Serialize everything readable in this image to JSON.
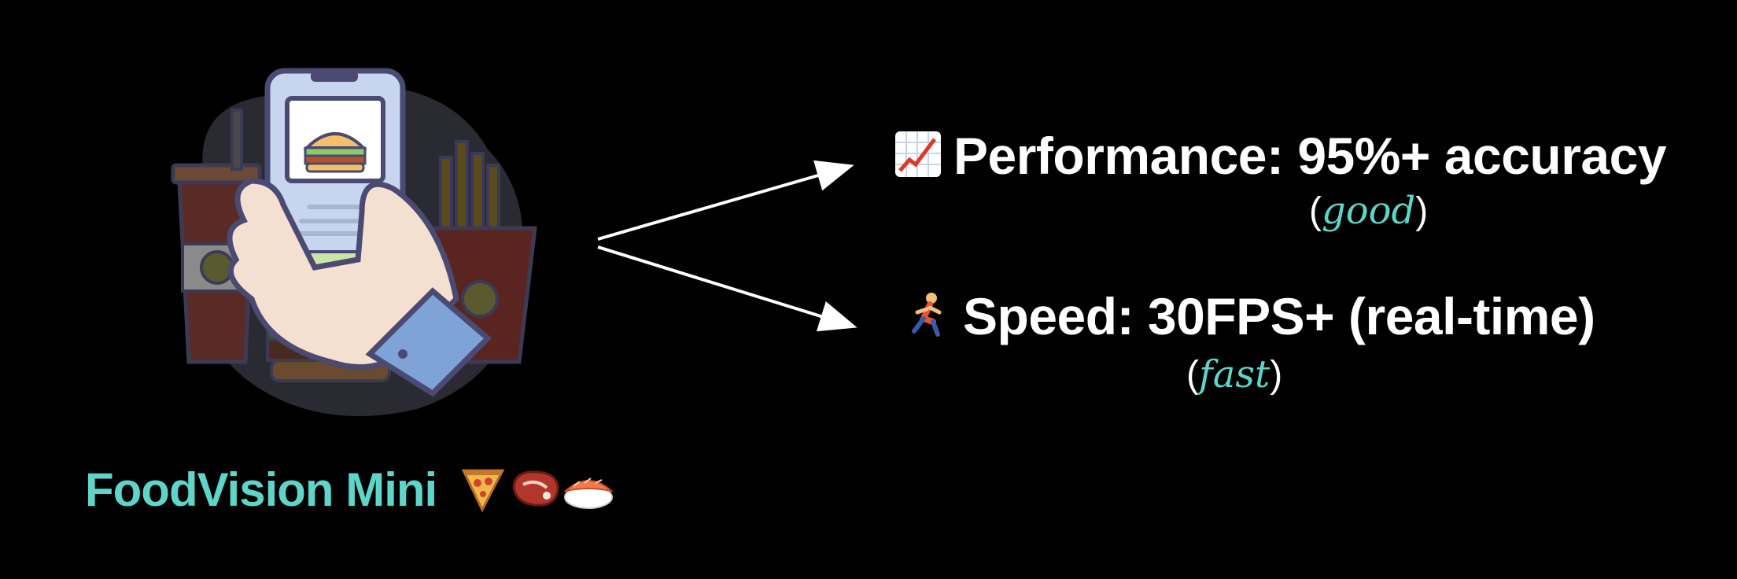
{
  "app": {
    "name": "FoodVision Mini",
    "emoji_icons": [
      "pizza-icon",
      "steak-icon",
      "sushi-icon"
    ]
  },
  "metrics": [
    {
      "icon": "chart-increasing-icon",
      "label": "Performance: 95%+ accuracy",
      "note_open": "(",
      "note_word": "good",
      "note_close": ")"
    },
    {
      "icon": "runner-icon",
      "label": "Speed: 30FPS+ (real-time)",
      "note_open": "(",
      "note_word": "fast",
      "note_close": ")"
    }
  ],
  "colors": {
    "background": "#000000",
    "accent": "#5fd5c9",
    "text": "#ffffff"
  }
}
